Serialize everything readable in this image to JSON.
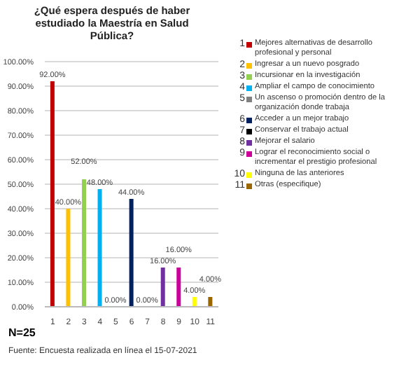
{
  "chart_data": {
    "type": "bar",
    "title": "¿Qué espera después de haber estudiado la Maestría en Salud Pública?",
    "categories": [
      "1",
      "2",
      "3",
      "4",
      "5",
      "6",
      "7",
      "8",
      "9",
      "10",
      "11"
    ],
    "stacked": true,
    "series": [
      {
        "name": "Mejores alternativas de desarrollo profesional y personal",
        "color": "#c00000",
        "values": [
          92,
          null,
          null,
          null,
          null,
          null,
          null,
          null,
          null,
          null,
          null
        ],
        "value_labels": [
          "92.00%",
          null,
          null,
          null,
          null,
          null,
          null,
          null,
          null,
          null,
          null
        ]
      },
      {
        "name": "Ingresar a un nuevo posgrado",
        "color": "#ffc000",
        "values": [
          null,
          40,
          null,
          null,
          null,
          null,
          null,
          null,
          null,
          null,
          null
        ],
        "value_labels": [
          null,
          "40.00%",
          null,
          null,
          null,
          null,
          null,
          null,
          null,
          null,
          null
        ]
      },
      {
        "name": "Incursionar en la investigación",
        "color": "#92d050",
        "values": [
          null,
          null,
          52,
          null,
          null,
          null,
          null,
          null,
          null,
          null,
          null
        ],
        "value_labels": [
          null,
          null,
          "52.00%",
          null,
          null,
          null,
          null,
          null,
          null,
          null,
          null
        ]
      },
      {
        "name": "Ampliar el campo de conocimiento",
        "color": "#00b0f0",
        "values": [
          null,
          null,
          null,
          48,
          null,
          null,
          null,
          null,
          null,
          null,
          null
        ],
        "value_labels": [
          null,
          null,
          null,
          "48.00%",
          null,
          null,
          null,
          null,
          null,
          null,
          null
        ]
      },
      {
        "name": "Un ascenso o promoción dentro de la organización donde trabaja",
        "color": "#808080",
        "values": [
          null,
          null,
          null,
          null,
          0,
          null,
          null,
          null,
          null,
          null,
          null
        ],
        "value_labels": [
          null,
          null,
          null,
          null,
          "0.00%",
          null,
          null,
          null,
          null,
          null,
          null
        ]
      },
      {
        "name": "Acceder a un mejor trabajo",
        "color": "#002060",
        "values": [
          null,
          null,
          null,
          null,
          null,
          44,
          null,
          null,
          null,
          null,
          null
        ],
        "value_labels": [
          null,
          null,
          null,
          null,
          null,
          "44.00%",
          null,
          null,
          null,
          null,
          null
        ]
      },
      {
        "name": "Conservar el trabajo actual",
        "color": "#000000",
        "values": [
          null,
          null,
          null,
          null,
          null,
          null,
          0,
          null,
          null,
          null,
          null
        ],
        "value_labels": [
          null,
          null,
          null,
          null,
          null,
          null,
          "0.00%",
          null,
          null,
          null,
          null
        ]
      },
      {
        "name": "Mejorar el salario",
        "color": "#7030a0",
        "values": [
          null,
          null,
          null,
          null,
          null,
          null,
          null,
          16,
          null,
          null,
          null
        ],
        "value_labels": [
          null,
          null,
          null,
          null,
          null,
          null,
          null,
          "16.00%",
          null,
          null,
          null
        ]
      },
      {
        "name": "Lograr el reconocimiento social o incrementar el prestigio profesional",
        "color": "#cc0099",
        "values": [
          null,
          null,
          null,
          null,
          null,
          null,
          null,
          null,
          16,
          null,
          null
        ],
        "value_labels": [
          null,
          null,
          null,
          null,
          null,
          null,
          null,
          null,
          "16.00%",
          null,
          null
        ]
      },
      {
        "name": "Ninguna de las anteriores",
        "color": "#ffff00",
        "values": [
          null,
          null,
          null,
          null,
          null,
          null,
          null,
          null,
          null,
          4,
          null
        ],
        "value_labels": [
          null,
          null,
          null,
          null,
          null,
          null,
          null,
          null,
          null,
          "4.00%",
          null
        ]
      },
      {
        "name": "Otras (especifique)",
        "color": "#996600",
        "values": [
          null,
          null,
          null,
          null,
          null,
          null,
          null,
          null,
          null,
          null,
          4
        ],
        "value_labels": [
          null,
          null,
          null,
          null,
          null,
          null,
          null,
          null,
          null,
          null,
          "4.00%"
        ]
      }
    ],
    "ylim": [
      0,
      100
    ],
    "yticks": [
      {
        "value": 0,
        "label": "0.00%"
      },
      {
        "value": 10,
        "label": "10.00%"
      },
      {
        "value": 20,
        "label": "20.00%"
      },
      {
        "value": 30,
        "label": "30.00%"
      },
      {
        "value": 40,
        "label": "40.00%"
      },
      {
        "value": 50,
        "label": "50.00%"
      },
      {
        "value": 60,
        "label": "60.00%"
      },
      {
        "value": 70,
        "label": "70.00%"
      },
      {
        "value": 80,
        "label": "80.00%"
      },
      {
        "value": 90,
        "label": "90.00%"
      },
      {
        "value": 100,
        "label": "100.00%"
      }
    ],
    "grid": "y",
    "legend": "right",
    "annotations": [
      "N=25",
      "Fuente: Encuesta realizada en línea el 15-07-2021"
    ]
  }
}
